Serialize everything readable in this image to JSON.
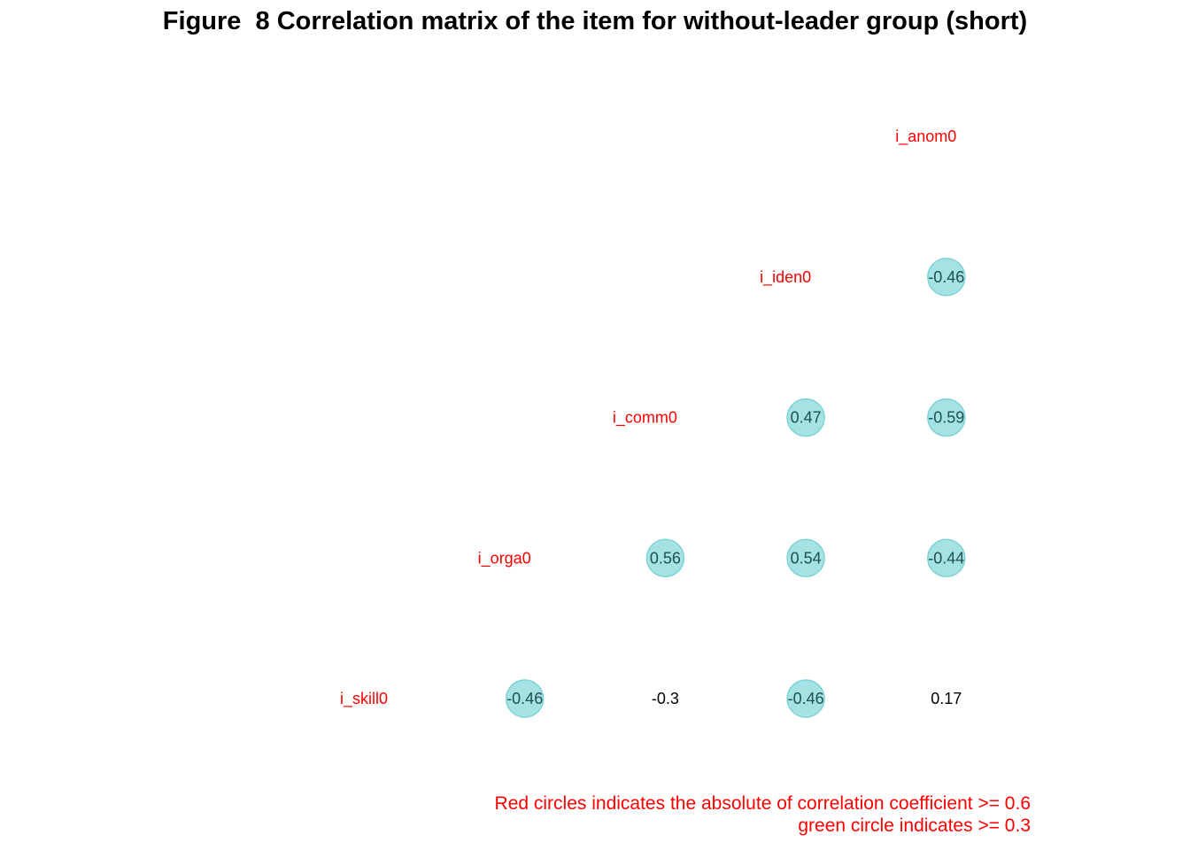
{
  "chart_data": {
    "type": "heatmap",
    "title": "Figure  8 Correlation matrix of the item for without-leader group (short)",
    "variables": [
      "i_skill0",
      "i_orga0",
      "i_comm0",
      "i_iden0",
      "i_anom0"
    ],
    "layout": "lower-triangle-with-diagonal-labels",
    "cells": [
      {
        "row": "i_orga0",
        "col": "i_skill0",
        "value": -0.46,
        "label": "-0.46",
        "highlight": "green"
      },
      {
        "row": "i_comm0",
        "col": "i_skill0",
        "value": -0.3,
        "label": "-0.3",
        "highlight": "none"
      },
      {
        "row": "i_comm0",
        "col": "i_orga0",
        "value": 0.56,
        "label": "0.56",
        "highlight": "green"
      },
      {
        "row": "i_iden0",
        "col": "i_skill0",
        "value": -0.46,
        "label": "-0.46",
        "highlight": "green"
      },
      {
        "row": "i_iden0",
        "col": "i_orga0",
        "value": 0.54,
        "label": "0.54",
        "highlight": "green"
      },
      {
        "row": "i_iden0",
        "col": "i_comm0",
        "value": 0.47,
        "label": "0.47",
        "highlight": "green"
      },
      {
        "row": "i_anom0",
        "col": "i_skill0",
        "value": 0.17,
        "label": "0.17",
        "highlight": "none"
      },
      {
        "row": "i_anom0",
        "col": "i_orga0",
        "value": -0.44,
        "label": "-0.44",
        "highlight": "green"
      },
      {
        "row": "i_anom0",
        "col": "i_comm0",
        "value": -0.59,
        "label": "-0.59",
        "highlight": "green"
      },
      {
        "row": "i_anom0",
        "col": "i_iden0",
        "value": -0.46,
        "label": "-0.46",
        "highlight": "green"
      }
    ],
    "thresholds": {
      "red": 0.6,
      "green": 0.3
    },
    "annotations": [
      "Red circles indicates the absolute of correlation coefficient >= 0.6",
      "green circle indicates >= 0.3"
    ],
    "colors": {
      "label": "#ff0000",
      "green_fill": "#a4e2e4",
      "green_stroke": "#7fd3d6",
      "red_fill": "#f4a0a0",
      "value_text": "#000000",
      "note": "#ff0000"
    }
  }
}
